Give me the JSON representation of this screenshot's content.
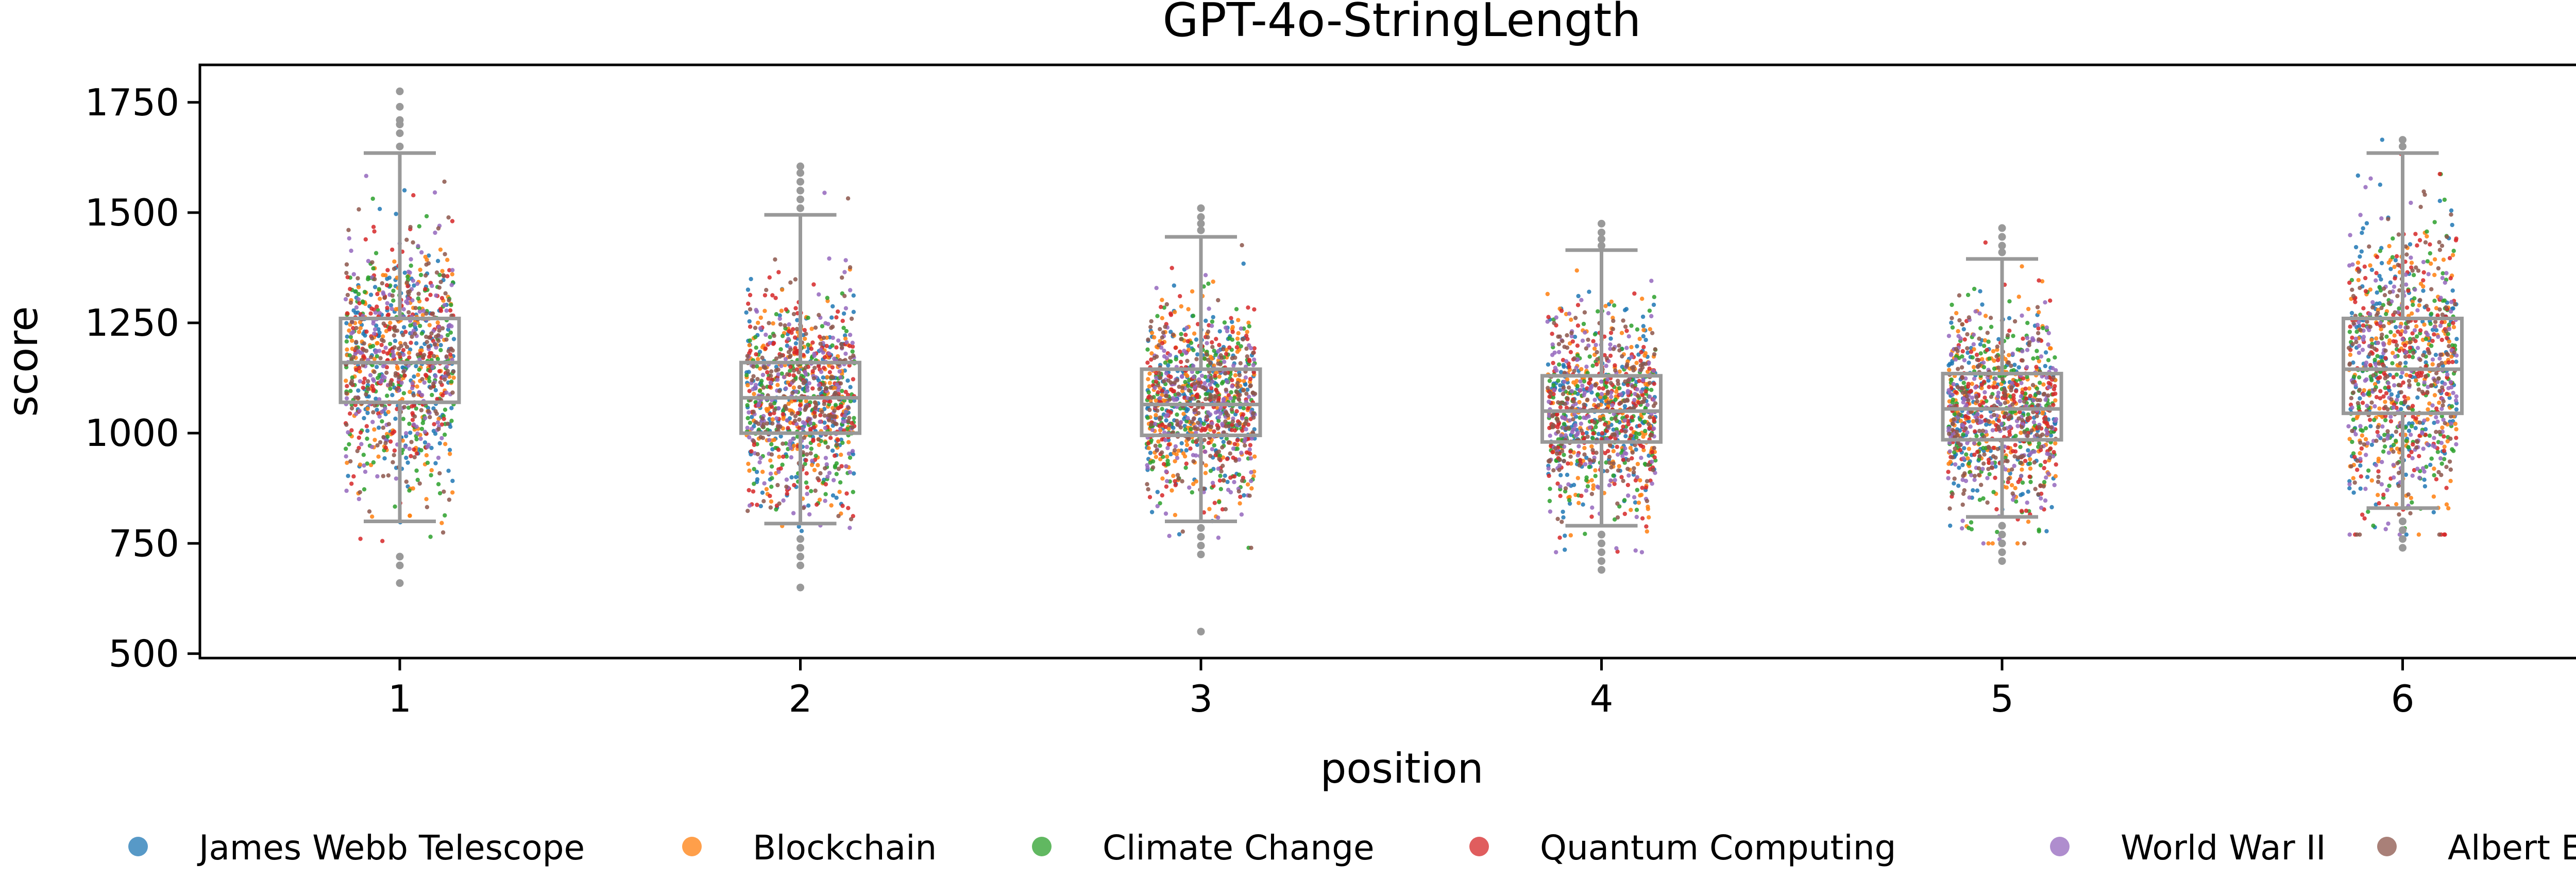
{
  "chart_data": {
    "type": "box+strip",
    "title": "GPT-4o-StringLength",
    "xlabel": "position",
    "ylabel": "score",
    "categories": [
      "1",
      "2",
      "3",
      "4",
      "5",
      "6"
    ],
    "ylim": [
      490,
      1835
    ],
    "yticks": [
      500,
      750,
      1000,
      1250,
      1500,
      1750
    ],
    "grid": false,
    "legend_position": "bottom",
    "series": [
      {
        "name": "James Webb Telescope",
        "color": "#1f77b4"
      },
      {
        "name": "Blockchain",
        "color": "#ff7f0e"
      },
      {
        "name": "Climate Change",
        "color": "#2ca02c"
      },
      {
        "name": "Quantum Computing",
        "color": "#d62728"
      },
      {
        "name": "World War II",
        "color": "#9467bd"
      },
      {
        "name": "Albert Einstein",
        "color": "#8c564b"
      }
    ],
    "boxes": [
      {
        "position": "1",
        "whisker_low": 800,
        "q1": 1070,
        "median": 1160,
        "q3": 1260,
        "whisker_high": 1635,
        "outliers": [
          720,
          700,
          660,
          1650,
          1680,
          1700,
          1710,
          1740,
          1775
        ]
      },
      {
        "position": "2",
        "whisker_low": 795,
        "q1": 1000,
        "median": 1080,
        "q3": 1160,
        "whisker_high": 1495,
        "outliers": [
          760,
          740,
          720,
          700,
          650,
          1510,
          1530,
          1550,
          1570,
          1590,
          1605
        ]
      },
      {
        "position": "3",
        "whisker_low": 800,
        "q1": 995,
        "median": 1065,
        "q3": 1145,
        "whisker_high": 1445,
        "outliers": [
          785,
          765,
          745,
          725,
          550,
          1460,
          1475,
          1490,
          1510
        ]
      },
      {
        "position": "4",
        "whisker_low": 790,
        "q1": 980,
        "median": 1050,
        "q3": 1130,
        "whisker_high": 1415,
        "outliers": [
          770,
          750,
          730,
          710,
          690,
          1425,
          1440,
          1455,
          1475
        ]
      },
      {
        "position": "5",
        "whisker_low": 810,
        "q1": 985,
        "median": 1055,
        "q3": 1135,
        "whisker_high": 1395,
        "outliers": [
          790,
          770,
          750,
          730,
          710,
          1410,
          1425,
          1445,
          1465
        ]
      },
      {
        "position": "6",
        "whisker_low": 830,
        "q1": 1045,
        "median": 1145,
        "q3": 1260,
        "whisker_high": 1635,
        "outliers": [
          800,
          780,
          760,
          740,
          1650,
          1665
        ]
      }
    ],
    "points_per_position_per_series": 170
  }
}
